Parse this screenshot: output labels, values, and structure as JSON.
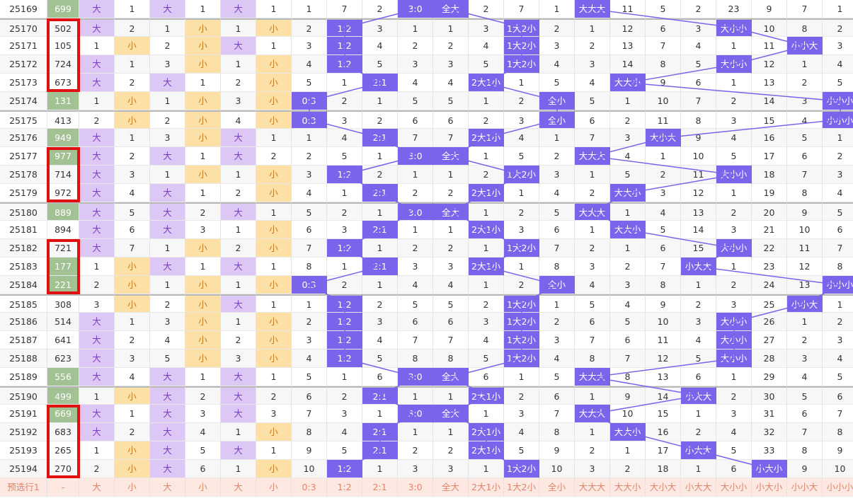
{
  "columns_hint": [
    "period",
    "number",
    "d1_bs",
    "d1_cnt",
    "d2_bs",
    "d2_cnt",
    "d3_bs",
    "d3_cnt",
    "ratio",
    "ratio",
    "ratio",
    "ratio",
    "pattern",
    "pattern",
    "pattern",
    "pattern",
    "triple",
    "triple",
    "triple",
    "triple",
    "triple",
    "triple",
    "triple",
    "triple"
  ],
  "ratio_labels": [
    "0:3",
    "1:2",
    "2:1",
    "3:0"
  ],
  "pattern_labels": [
    "全大",
    "2大1小",
    "1大2小",
    "全小"
  ],
  "triple_labels": [
    "大大大",
    "大大小",
    "大小大",
    "小大大",
    "大小小",
    "小大小",
    "小小大",
    "小小小"
  ],
  "bs_labels": {
    "big": "大",
    "small": "小"
  },
  "rows": [
    {
      "p": "25169",
      "n": "699",
      "g": true,
      "b": [
        "大",
        "1",
        "大",
        "1",
        "大",
        "1"
      ],
      "r": [
        1,
        7,
        2,
        "3:0"
      ],
      "pt": [
        "全大",
        2,
        7,
        1
      ],
      "t": [
        "大大大",
        11,
        5,
        2,
        23,
        9,
        7,
        1
      ]
    },
    {
      "p": "25170",
      "n": "502",
      "g": false,
      "b": [
        "大",
        "2",
        "1",
        "小",
        "1",
        "小"
      ],
      "r": [
        2,
        "1:2",
        3,
        1
      ],
      "pt": [
        1,
        3,
        "1大2小",
        2
      ],
      "t": [
        1,
        12,
        6,
        3,
        "大小小",
        10,
        8,
        2
      ]
    },
    {
      "p": "25171",
      "n": "105",
      "g": false,
      "b": [
        "1",
        "小",
        "2",
        "小",
        "大",
        "1"
      ],
      "r": [
        3,
        "1:2",
        4,
        2
      ],
      "pt": [
        2,
        4,
        "1大2小",
        3
      ],
      "t": [
        2,
        13,
        7,
        4,
        1,
        11,
        "小小大",
        3
      ]
    },
    {
      "p": "25172",
      "n": "724",
      "g": false,
      "b": [
        "大",
        "1",
        "3",
        "小",
        "1",
        "小"
      ],
      "r": [
        4,
        "1:2",
        5,
        3
      ],
      "pt": [
        3,
        5,
        "1大2小",
        4
      ],
      "t": [
        3,
        14,
        8,
        5,
        "大小小",
        12,
        1,
        4
      ]
    },
    {
      "p": "25173",
      "n": "673",
      "g": false,
      "b": [
        "大",
        "2",
        "大",
        "1",
        "2",
        "小"
      ],
      "r": [
        5,
        1,
        "2:1",
        4
      ],
      "pt": [
        4,
        "2大1小",
        1,
        5
      ],
      "t": [
        4,
        "大大小",
        9,
        6,
        1,
        13,
        2,
        5
      ]
    },
    {
      "p": "25174",
      "n": "131",
      "g": true,
      "b": [
        "1",
        "小",
        "1",
        "小",
        "3",
        "小"
      ],
      "r": [
        "0:3",
        2,
        1,
        5
      ],
      "pt": [
        5,
        1,
        2,
        "全小"
      ],
      "t": [
        5,
        1,
        10,
        7,
        2,
        14,
        3,
        "小小小"
      ]
    },
    {
      "p": "25175",
      "n": "413",
      "g": false,
      "b": [
        "2",
        "小",
        "2",
        "小",
        "4",
        "小"
      ],
      "r": [
        "0:3",
        3,
        2,
        6
      ],
      "pt": [
        6,
        2,
        3,
        "全小"
      ],
      "t": [
        6,
        2,
        11,
        8,
        3,
        15,
        4,
        "小小小"
      ]
    },
    {
      "p": "25176",
      "n": "949",
      "g": true,
      "b": [
        "大",
        "1",
        "3",
        "小",
        "大",
        "1"
      ],
      "r": [
        1,
        4,
        "2:1",
        7
      ],
      "pt": [
        7,
        "2大1小",
        4,
        1
      ],
      "t": [
        7,
        3,
        "大小大",
        9,
        4,
        16,
        5,
        1
      ]
    },
    {
      "p": "25177",
      "n": "977",
      "g": true,
      "b": [
        "大",
        "2",
        "大",
        "1",
        "大",
        "2"
      ],
      "r": [
        2,
        5,
        1,
        "3:0"
      ],
      "pt": [
        "全大",
        1,
        5,
        2
      ],
      "t": [
        "大大大",
        4,
        1,
        10,
        5,
        17,
        6,
        2
      ]
    },
    {
      "p": "25178",
      "n": "714",
      "g": false,
      "b": [
        "大",
        "3",
        "1",
        "小",
        "1",
        "小"
      ],
      "r": [
        3,
        "1:2",
        2,
        1
      ],
      "pt": [
        1,
        2,
        "1大2小",
        3
      ],
      "t": [
        1,
        5,
        2,
        11,
        "大小小",
        18,
        7,
        3
      ]
    },
    {
      "p": "25179",
      "n": "972",
      "g": false,
      "b": [
        "大",
        "4",
        "大",
        "1",
        "2",
        "小"
      ],
      "r": [
        4,
        1,
        "2:1",
        2
      ],
      "pt": [
        2,
        "2大1小",
        1,
        4
      ],
      "t": [
        2,
        "大大小",
        3,
        12,
        1,
        19,
        8,
        4
      ]
    },
    {
      "p": "25180",
      "n": "889",
      "g": true,
      "b": [
        "大",
        "5",
        "大",
        "2",
        "大",
        "1"
      ],
      "r": [
        5,
        2,
        1,
        "3:0"
      ],
      "pt": [
        "全大",
        1,
        2,
        5
      ],
      "t": [
        "大大大",
        1,
        4,
        13,
        2,
        20,
        9,
        5
      ]
    },
    {
      "p": "25181",
      "n": "894",
      "g": false,
      "b": [
        "大",
        "6",
        "大",
        "3",
        "1",
        "小"
      ],
      "r": [
        6,
        3,
        "2:1",
        1
      ],
      "pt": [
        1,
        "2大1小",
        3,
        6
      ],
      "t": [
        1,
        "大大小",
        5,
        14,
        3,
        21,
        10,
        6
      ]
    },
    {
      "p": "25182",
      "n": "721",
      "g": false,
      "b": [
        "大",
        "7",
        "1",
        "小",
        "2",
        "小"
      ],
      "r": [
        7,
        "1:2",
        1,
        2
      ],
      "pt": [
        2,
        1,
        "1大2小",
        7
      ],
      "t": [
        2,
        1,
        6,
        15,
        "大小小",
        22,
        11,
        7
      ]
    },
    {
      "p": "25183",
      "n": "177",
      "g": true,
      "b": [
        "1",
        "小",
        "大",
        "1",
        "大",
        "1"
      ],
      "r": [
        8,
        1,
        "2:1",
        3
      ],
      "pt": [
        3,
        "2大1小",
        1,
        8
      ],
      "t": [
        3,
        2,
        7,
        "小大大",
        1,
        23,
        12,
        8
      ]
    },
    {
      "p": "25184",
      "n": "221",
      "g": true,
      "b": [
        "2",
        "小",
        "1",
        "小",
        "1",
        "小"
      ],
      "r": [
        "0:3",
        2,
        1,
        4
      ],
      "pt": [
        4,
        1,
        2,
        "全小"
      ],
      "t": [
        4,
        3,
        8,
        1,
        2,
        24,
        13,
        "小小小"
      ]
    },
    {
      "p": "25185",
      "n": "308",
      "g": false,
      "b": [
        "3",
        "小",
        "2",
        "小",
        "大",
        "1"
      ],
      "r": [
        1,
        "1:2",
        2,
        5
      ],
      "pt": [
        5,
        2,
        "1大2小",
        1
      ],
      "t": [
        5,
        4,
        9,
        2,
        3,
        25,
        "小小大",
        1
      ]
    },
    {
      "p": "25186",
      "n": "514",
      "g": false,
      "b": [
        "大",
        "1",
        "3",
        "小",
        "1",
        "小"
      ],
      "r": [
        2,
        "1:2",
        3,
        6
      ],
      "pt": [
        6,
        3,
        "1大2小",
        2
      ],
      "t": [
        6,
        5,
        10,
        3,
        "大小小",
        26,
        1,
        2
      ]
    },
    {
      "p": "25187",
      "n": "641",
      "g": false,
      "b": [
        "大",
        "2",
        "4",
        "小",
        "2",
        "小"
      ],
      "r": [
        3,
        "1:2",
        4,
        7
      ],
      "pt": [
        7,
        4,
        "1大2小",
        3
      ],
      "t": [
        7,
        6,
        11,
        4,
        "大小小",
        27,
        2,
        3
      ]
    },
    {
      "p": "25188",
      "n": "623",
      "g": false,
      "b": [
        "大",
        "3",
        "5",
        "小",
        "3",
        "小"
      ],
      "r": [
        4,
        "1:2",
        5,
        8
      ],
      "pt": [
        8,
        5,
        "1大2小",
        4
      ],
      "t": [
        8,
        7,
        12,
        5,
        "大小小",
        28,
        3,
        4
      ]
    },
    {
      "p": "25189",
      "n": "556",
      "g": true,
      "b": [
        "大",
        "4",
        "大",
        "1",
        "大",
        "1"
      ],
      "r": [
        5,
        1,
        6,
        "3:0"
      ],
      "pt": [
        "全大",
        6,
        1,
        5
      ],
      "t": [
        "大大大",
        8,
        13,
        6,
        1,
        29,
        4,
        5
      ]
    },
    {
      "p": "25190",
      "n": "499",
      "g": true,
      "b": [
        "1",
        "小",
        "大",
        "2",
        "大",
        "2"
      ],
      "r": [
        6,
        2,
        "2:1",
        1
      ],
      "pt": [
        1,
        "2大1小",
        2,
        6
      ],
      "t": [
        1,
        9,
        14,
        "小大大",
        2,
        30,
        5,
        6
      ]
    },
    {
      "p": "25191",
      "n": "669",
      "g": true,
      "b": [
        "大",
        "1",
        "大",
        "3",
        "大",
        "3"
      ],
      "r": [
        7,
        3,
        1,
        "3:0"
      ],
      "pt": [
        "全大",
        1,
        3,
        7
      ],
      "t": [
        "大大大",
        10,
        15,
        1,
        3,
        31,
        6,
        7
      ]
    },
    {
      "p": "25192",
      "n": "683",
      "g": false,
      "b": [
        "大",
        "2",
        "大",
        "4",
        "1",
        "小"
      ],
      "r": [
        8,
        4,
        "2:1",
        1
      ],
      "pt": [
        1,
        "2大1小",
        4,
        8
      ],
      "t": [
        1,
        "大大小",
        16,
        2,
        4,
        32,
        7,
        8
      ]
    },
    {
      "p": "25193",
      "n": "265",
      "g": false,
      "b": [
        "1",
        "小",
        "大",
        "5",
        "大",
        "1"
      ],
      "r": [
        9,
        5,
        "2:1",
        2
      ],
      "pt": [
        2,
        "2大1小",
        5,
        9
      ],
      "t": [
        2,
        1,
        17,
        "小大大",
        5,
        33,
        8,
        9
      ]
    },
    {
      "p": "25194",
      "n": "270",
      "g": false,
      "b": [
        "2",
        "小",
        "大",
        "6",
        "1",
        "小"
      ],
      "r": [
        10,
        "1:2",
        1,
        3
      ],
      "pt": [
        3,
        1,
        "1大2小",
        10
      ],
      "t": [
        3,
        2,
        18,
        1,
        6,
        "小大小",
        9,
        10
      ]
    }
  ],
  "footer": {
    "label": "预选行1",
    "number": "-",
    "cells": [
      "大",
      "小",
      "大",
      "小",
      "大",
      "小",
      "0:3",
      "1:2",
      "2:1",
      "3:0",
      "全大",
      "2大1小",
      "1大2小",
      "全小",
      "大大大",
      "大大小",
      "大小大",
      "小大大",
      "大小小",
      "小大小",
      "小小大",
      "小小小"
    ]
  },
  "red_boxes": [
    [
      "25170",
      "25173"
    ],
    [
      "25177",
      "25179"
    ],
    [
      "25182",
      "25184"
    ],
    [
      "25191",
      "25194"
    ]
  ],
  "colors": {
    "accent": "#7a64ec",
    "big": "#ddc8f5",
    "small": "#fde0a6",
    "green": "#a3c294",
    "red": "#e01010",
    "line": "#7a64ec"
  }
}
